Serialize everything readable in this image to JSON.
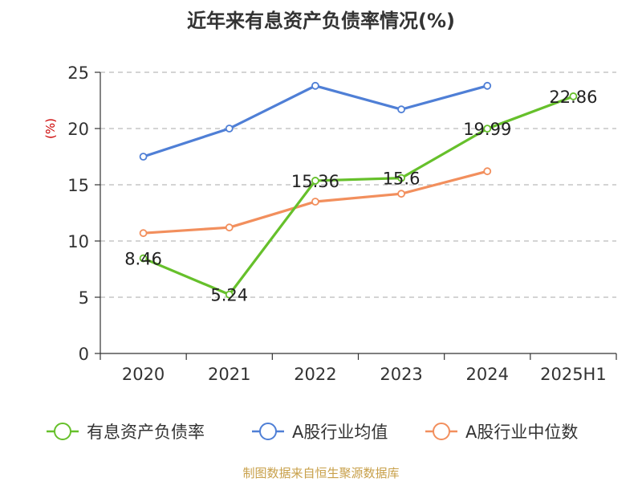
{
  "chart_data": {
    "type": "line",
    "title": "近年来有息资产负债率情况(%)",
    "ylabel": "(%)",
    "xlabel": "",
    "categories": [
      "2020",
      "2021",
      "2022",
      "2023",
      "2024",
      "2025H1"
    ],
    "ylim": [
      0,
      25
    ],
    "yticks": [
      0,
      5,
      10,
      15,
      20,
      25
    ],
    "grid": true,
    "legend_position": "bottom",
    "series": [
      {
        "name": "有息资产负债率",
        "color": "#66c02b",
        "values": [
          8.46,
          5.24,
          15.36,
          15.6,
          19.99,
          22.86
        ],
        "labels": [
          "8.46",
          "5.24",
          "15.36",
          "15.6",
          "19.99",
          "22.86"
        ]
      },
      {
        "name": "A股行业均值",
        "color": "#4f7fd6",
        "values": [
          17.5,
          20.0,
          23.8,
          21.7,
          23.8,
          null
        ],
        "labels": null
      },
      {
        "name": "A股行业中位数",
        "color": "#f28f5d",
        "values": [
          10.7,
          11.2,
          13.5,
          14.2,
          16.2,
          null
        ],
        "labels": null
      }
    ]
  },
  "source": "制图数据来自恒生聚源数据库"
}
